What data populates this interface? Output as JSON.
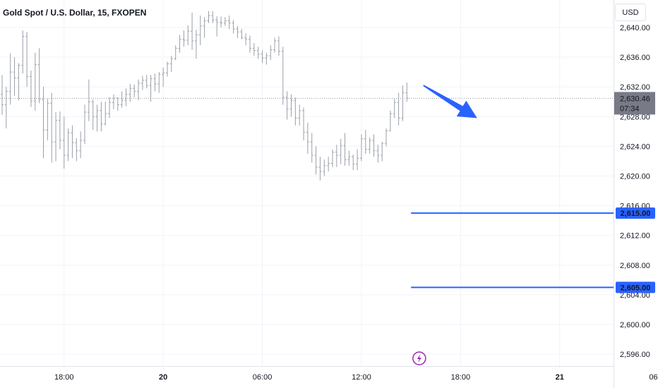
{
  "header": {
    "symbol_title": "Gold Spot / U.S. Dollar, 15, FXOPEN"
  },
  "price_axis": {
    "currency_label": "USD"
  },
  "current_price": {
    "label": "2,630.46",
    "countdown": "07:34"
  },
  "colors": {
    "price_line": "#2962ff",
    "arrow": "#2962ff",
    "bars": "#9a9fa8",
    "event_icon": "#9c27b0",
    "current_tag": "#787b86"
  },
  "icons": {
    "event": "lightning-icon"
  },
  "chart_data": {
    "type": "ohlc",
    "title": "Gold Spot / U.S. Dollar, 15, FXOPEN",
    "x_ticks": [
      "18:00",
      "20",
      "06:00",
      "12:00",
      "18:00",
      "21",
      "06:00"
    ],
    "y_ticks": [
      2640,
      2636,
      2632,
      2628,
      2624,
      2620,
      2616,
      2612,
      2608,
      2604,
      2600,
      2596
    ],
    "y_tick_labels": [
      "2,640.00",
      "2,636.00",
      "2,632.00",
      "2,628.00",
      "2,624.00",
      "2,620.00",
      "2,616.00",
      "2,612.00",
      "2,608.00",
      "2,604.00",
      "2,600.00",
      "2,596.00"
    ],
    "ylim": [
      2594.4,
      2643.7
    ],
    "bar_interval_minutes": 15,
    "first_bar_time": "19 14:15",
    "current_price": 2630.46,
    "horizontal_lines": [
      {
        "price": 2615.0,
        "label": "2,615.00",
        "from_time": "20 15:00"
      },
      {
        "price": 2605.0,
        "label": "2,605.00",
        "from_time": "20 15:00"
      }
    ],
    "arrow": {
      "from": {
        "time": "20 15:45",
        "price": 2632.2
      },
      "to": {
        "time": "20 19:00",
        "price": 2627.8
      }
    },
    "event_marker_time": "20 15:30",
    "ohlc": [
      [
        2631.0,
        2633.6,
        2628.2,
        2629.6
      ],
      [
        2629.6,
        2632.0,
        2626.4,
        2631.4
      ],
      [
        2631.4,
        2636.5,
        2629.6,
        2634.0
      ],
      [
        2634.0,
        2636.0,
        2630.8,
        2633.2
      ],
      [
        2633.2,
        2635.2,
        2630.2,
        2634.9
      ],
      [
        2634.9,
        2639.6,
        2633.8,
        2638.8
      ],
      [
        2638.8,
        2639.4,
        2632.0,
        2633.4
      ],
      [
        2633.4,
        2634.2,
        2629.3,
        2630.1
      ],
      [
        2630.1,
        2636.6,
        2628.8,
        2635.0
      ],
      [
        2635.0,
        2637.2,
        2629.8,
        2630.3
      ],
      [
        2630.3,
        2632.0,
        2622.4,
        2626.2
      ],
      [
        2626.2,
        2630.4,
        2624.8,
        2629.8
      ],
      [
        2629.8,
        2631.2,
        2621.8,
        2624.6
      ],
      [
        2624.6,
        2628.6,
        2622.0,
        2627.5
      ],
      [
        2627.5,
        2628.7,
        2623.6,
        2624.8
      ],
      [
        2624.8,
        2628.0,
        2621.0,
        2622.8
      ],
      [
        2622.8,
        2626.4,
        2622.0,
        2625.8
      ],
      [
        2625.8,
        2626.8,
        2622.4,
        2624.5
      ],
      [
        2624.5,
        2625.1,
        2622.0,
        2623.4
      ],
      [
        2623.4,
        2626.0,
        2622.4,
        2624.8
      ],
      [
        2624.8,
        2629.6,
        2624.3,
        2628.6
      ],
      [
        2628.6,
        2633.0,
        2627.4,
        2630.0
      ],
      [
        2630.0,
        2630.3,
        2626.2,
        2628.0
      ],
      [
        2628.0,
        2629.6,
        2626.0,
        2628.8
      ],
      [
        2628.8,
        2630.0,
        2626.0,
        2627.0
      ],
      [
        2627.0,
        2630.0,
        2626.8,
        2628.4
      ],
      [
        2628.4,
        2630.6,
        2627.8,
        2629.9
      ],
      [
        2629.9,
        2631.0,
        2629.0,
        2630.5
      ],
      [
        2630.5,
        2630.6,
        2628.8,
        2629.6
      ],
      [
        2629.6,
        2631.4,
        2629.2,
        2630.2
      ],
      [
        2630.2,
        2631.8,
        2629.4,
        2631.0
      ],
      [
        2631.0,
        2632.4,
        2630.0,
        2631.8
      ],
      [
        2631.8,
        2632.3,
        2630.6,
        2631.4
      ],
      [
        2631.4,
        2633.0,
        2630.2,
        2632.5
      ],
      [
        2632.5,
        2633.5,
        2631.6,
        2632.9
      ],
      [
        2632.9,
        2633.6,
        2631.8,
        2632.2
      ],
      [
        2632.2,
        2633.6,
        2630.0,
        2633.1
      ],
      [
        2633.1,
        2633.8,
        2631.4,
        2632.4
      ],
      [
        2632.4,
        2634.0,
        2631.2,
        2633.7
      ],
      [
        2633.7,
        2634.6,
        2632.0,
        2633.9
      ],
      [
        2633.9,
        2635.4,
        2633.4,
        2635.1
      ],
      [
        2635.1,
        2636.2,
        2634.0,
        2635.8
      ],
      [
        2635.8,
        2637.6,
        2635.6,
        2637.2
      ],
      [
        2637.2,
        2639.0,
        2636.6,
        2638.4
      ],
      [
        2638.4,
        2639.6,
        2637.4,
        2638.3
      ],
      [
        2638.3,
        2640.3,
        2637.6,
        2639.5
      ],
      [
        2639.5,
        2642.0,
        2637.0,
        2638.2
      ],
      [
        2638.2,
        2639.7,
        2635.8,
        2639.0
      ],
      [
        2639.0,
        2641.6,
        2637.6,
        2640.2
      ],
      [
        2640.2,
        2641.4,
        2638.6,
        2640.9
      ],
      [
        2640.9,
        2642.2,
        2640.6,
        2641.6
      ],
      [
        2641.6,
        2642.2,
        2640.6,
        2641.0
      ],
      [
        2641.0,
        2641.5,
        2638.8,
        2640.7
      ],
      [
        2640.7,
        2641.5,
        2640.0,
        2640.6
      ],
      [
        2640.6,
        2641.4,
        2640.2,
        2640.9
      ],
      [
        2640.9,
        2641.6,
        2639.8,
        2640.6
      ],
      [
        2640.6,
        2641.0,
        2639.2,
        2639.8
      ],
      [
        2639.8,
        2640.2,
        2638.6,
        2639.4
      ],
      [
        2639.4,
        2639.8,
        2638.4,
        2638.6
      ],
      [
        2638.6,
        2639.2,
        2637.6,
        2638.4
      ],
      [
        2638.4,
        2638.9,
        2636.6,
        2637.2
      ],
      [
        2637.2,
        2637.9,
        2636.2,
        2636.9
      ],
      [
        2636.9,
        2637.4,
        2635.8,
        2636.4
      ],
      [
        2636.4,
        2636.9,
        2635.2,
        2635.9
      ],
      [
        2635.9,
        2636.6,
        2635.0,
        2636.2
      ],
      [
        2636.2,
        2637.6,
        2635.6,
        2637.0
      ],
      [
        2637.0,
        2638.6,
        2636.6,
        2638.2
      ],
      [
        2638.2,
        2638.8,
        2636.2,
        2636.8
      ],
      [
        2636.8,
        2637.4,
        2629.6,
        2630.6
      ],
      [
        2630.6,
        2631.4,
        2627.6,
        2629.0
      ],
      [
        2629.0,
        2631.0,
        2628.0,
        2630.2
      ],
      [
        2630.2,
        2630.6,
        2626.8,
        2627.8
      ],
      [
        2627.8,
        2629.6,
        2626.8,
        2628.8
      ],
      [
        2628.8,
        2629.2,
        2624.8,
        2625.9
      ],
      [
        2625.9,
        2627.2,
        2623.0,
        2624.6
      ],
      [
        2624.6,
        2625.8,
        2621.8,
        2622.8
      ],
      [
        2622.8,
        2624.0,
        2620.2,
        2621.2
      ],
      [
        2621.2,
        2622.6,
        2619.4,
        2620.6
      ],
      [
        2620.6,
        2622.2,
        2620.0,
        2621.4
      ],
      [
        2621.4,
        2622.6,
        2620.6,
        2621.7
      ],
      [
        2621.7,
        2623.6,
        2621.2,
        2623.2
      ],
      [
        2623.2,
        2624.2,
        2621.2,
        2622.8
      ],
      [
        2622.8,
        2625.0,
        2621.6,
        2624.1
      ],
      [
        2624.1,
        2625.8,
        2621.4,
        2622.2
      ],
      [
        2622.2,
        2623.4,
        2621.4,
        2622.6
      ],
      [
        2622.6,
        2622.9,
        2620.8,
        2621.6
      ],
      [
        2621.6,
        2623.6,
        2620.8,
        2622.4
      ],
      [
        2622.4,
        2625.6,
        2622.0,
        2625.0
      ],
      [
        2625.0,
        2626.2,
        2623.0,
        2623.6
      ],
      [
        2623.6,
        2625.2,
        2623.0,
        2624.8
      ],
      [
        2624.8,
        2625.6,
        2622.6,
        2623.4
      ],
      [
        2623.4,
        2624.2,
        2621.8,
        2622.8
      ],
      [
        2622.8,
        2624.6,
        2622.0,
        2624.4
      ],
      [
        2624.4,
        2626.4,
        2624.0,
        2626.1
      ],
      [
        2626.1,
        2628.8,
        2626.0,
        2628.4
      ],
      [
        2628.4,
        2630.4,
        2627.8,
        2629.9
      ],
      [
        2629.9,
        2631.2,
        2626.8,
        2627.8
      ],
      [
        2627.8,
        2632.2,
        2627.4,
        2631.2
      ],
      [
        2631.2,
        2632.6,
        2630.0,
        2630.5
      ]
    ]
  }
}
